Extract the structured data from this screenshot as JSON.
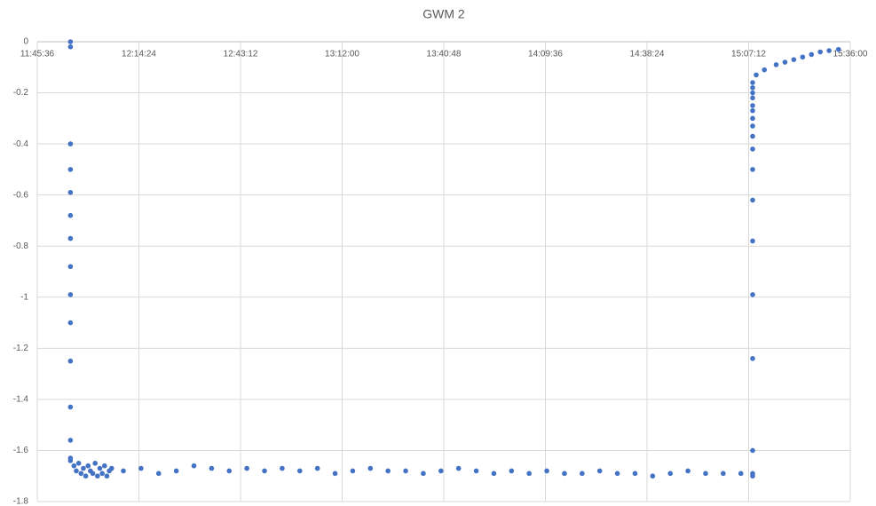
{
  "chart_data": {
    "type": "scatter",
    "title": "GWM 2",
    "x": [
      42900,
      42900,
      42900,
      42900,
      42900,
      42900,
      42900,
      42900,
      42900,
      42900,
      42900,
      42900,
      42900,
      42900,
      42900,
      42960,
      43000,
      43040,
      43080,
      43120,
      43160,
      43200,
      43240,
      43280,
      43320,
      43360,
      43400,
      43440,
      43480,
      43520,
      43560,
      43600,
      43800,
      44100,
      44400,
      44700,
      45000,
      45300,
      45600,
      45900,
      46200,
      46500,
      46800,
      47100,
      47400,
      47700,
      48000,
      48300,
      48600,
      48900,
      49200,
      49500,
      49800,
      50100,
      50400,
      50700,
      51000,
      51300,
      51600,
      51900,
      52200,
      52500,
      52800,
      53100,
      53400,
      53700,
      54000,
      54300,
      54500,
      54500,
      54500,
      54500,
      54500,
      54500,
      54500,
      54500,
      54500,
      54500,
      54500,
      54500,
      54500,
      54500,
      54500,
      54500,
      54500,
      54500,
      54560,
      54700,
      54900,
      55050,
      55200,
      55350,
      55500,
      55650,
      55800,
      55960
    ],
    "series": [
      {
        "color": "#4472c4",
        "values": [
          0,
          -0.02,
          -0.4,
          -0.5,
          -0.59,
          -0.68,
          -0.77,
          -0.88,
          -0.99,
          -1.1,
          -1.25,
          -1.43,
          -1.56,
          -1.63,
          -1.64,
          -1.66,
          -1.68,
          -1.65,
          -1.69,
          -1.67,
          -1.7,
          -1.66,
          -1.68,
          -1.69,
          -1.65,
          -1.7,
          -1.67,
          -1.69,
          -1.66,
          -1.7,
          -1.68,
          -1.67,
          -1.68,
          -1.67,
          -1.69,
          -1.68,
          -1.66,
          -1.67,
          -1.68,
          -1.67,
          -1.68,
          -1.67,
          -1.68,
          -1.67,
          -1.69,
          -1.68,
          -1.67,
          -1.68,
          -1.68,
          -1.69,
          -1.68,
          -1.67,
          -1.68,
          -1.69,
          -1.68,
          -1.69,
          -1.68,
          -1.69,
          -1.69,
          -1.68,
          -1.69,
          -1.69,
          -1.7,
          -1.69,
          -1.68,
          -1.69,
          -1.69,
          -1.69,
          -1.7,
          -1.69,
          -1.6,
          -1.24,
          -0.99,
          -0.78,
          -0.62,
          -0.5,
          -0.42,
          -0.37,
          -0.33,
          -0.3,
          -0.27,
          -0.25,
          -0.22,
          -0.2,
          -0.18,
          -0.16,
          -0.13,
          -0.11,
          -0.09,
          -0.08,
          -0.07,
          -0.06,
          -0.05,
          -0.04,
          -0.035,
          -0.03
        ]
      }
    ],
    "xlim": [
      42336,
      56160
    ],
    "xticks": [
      {
        "value": 42336,
        "label": "11:45:36"
      },
      {
        "value": 44064,
        "label": "12:14:24"
      },
      {
        "value": 45792,
        "label": "12:43:12"
      },
      {
        "value": 47520,
        "label": "13:12:00"
      },
      {
        "value": 49248,
        "label": "13:40:48"
      },
      {
        "value": 50976,
        "label": "14:09:36"
      },
      {
        "value": 52704,
        "label": "14:38:24"
      },
      {
        "value": 54432,
        "label": "15:07:12"
      },
      {
        "value": 56160,
        "label": "15:36:00"
      }
    ],
    "ylim": [
      -1.8,
      0
    ],
    "yticks": [
      0,
      -0.2,
      -0.4,
      -0.6,
      -0.8,
      -1,
      -1.2,
      -1.4,
      -1.6,
      -1.8
    ],
    "grid": true
  }
}
